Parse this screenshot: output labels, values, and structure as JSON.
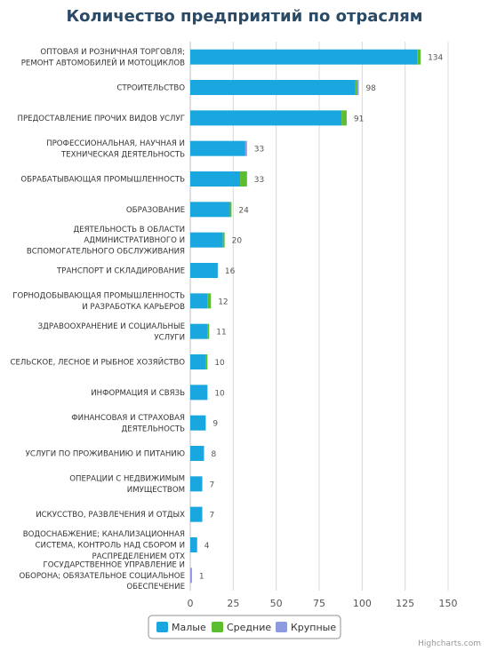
{
  "chart_data": {
    "type": "bar",
    "orientation": "horizontal",
    "stacked": true,
    "title": "Количество предприятий по отраслям",
    "categories": [
      [
        "ОПТОВАЯ И РОЗНИЧНАЯ ТОРГОВЛЯ;",
        "РЕМОНТ АВТОМОБИЛЕЙ И МОТОЦИКЛОВ"
      ],
      [
        "СТРОИТЕЛЬСТВО"
      ],
      [
        "ПРЕДОСТАВЛЕНИЕ ПРОЧИХ ВИДОВ УСЛУГ"
      ],
      [
        "ПРОФЕССИОНАЛЬНАЯ, НАУЧНАЯ И",
        "ТЕХНИЧЕСКАЯ ДЕЯТЕЛЬНОСТЬ"
      ],
      [
        "ОБРАБАТЫВАЮЩАЯ ПРОМЫШЛЕННОСТЬ"
      ],
      [
        "ОБРАЗОВАНИЕ"
      ],
      [
        "ДЕЯТЕЛЬНОСТЬ В ОБЛАСТИ",
        "АДМИНИСТРАТИВНОГО И",
        "ВСПОМОГАТЕЛЬНОГО ОБСЛУЖИВАНИЯ"
      ],
      [
        "ТРАНСПОРТ И СКЛАДИРОВАНИЕ"
      ],
      [
        "ГОРНОДОБЫВАЮЩАЯ ПРОМЫШЛЕННОСТЬ",
        "И РАЗРАБОТКА КАРЬЕРОВ"
      ],
      [
        "ЗДРАВООХРАНЕНИЕ И СОЦИАЛЬНЫЕ",
        "УСЛУГИ"
      ],
      [
        "СЕЛЬСКОЕ, ЛЕСНОЕ И РЫБНОЕ ХОЗЯЙСТВО"
      ],
      [
        "ИНФОРМАЦИЯ И СВЯЗЬ"
      ],
      [
        "ФИНАНСОВАЯ И СТРАХОВАЯ",
        "ДЕЯТЕЛЬНОСТЬ"
      ],
      [
        "УСЛУГИ ПО ПРОЖИВАНИЮ И ПИТАНИЮ"
      ],
      [
        "ОПЕРАЦИИ С НЕДВИЖИМЫМ",
        "ИМУЩЕСТВОМ"
      ],
      [
        "ИСКУССТВО, РАЗВЛЕЧЕНИЯ И ОТДЫХ"
      ],
      [
        "ВОДОСНАБЖЕНИЕ; КАНАЛИЗАЦИОННАЯ",
        "СИСТЕМА, КОНТРОЛЬ НАД СБОРОМ И",
        "РАСПРЕДЕЛЕНИЕМ ОТХ"
      ],
      [
        "ГОСУДАРСТВЕННОЕ УПРАВЛЕНИЕ И",
        "ОБОРОНА; ОБЯЗАТЕЛЬНОЕ СОЦИАЛЬНОЕ",
        "ОБЕСПЕЧЕНИЕ"
      ]
    ],
    "series": [
      {
        "name": "Малые",
        "color": "#1aa6de",
        "values": [
          132,
          96,
          88,
          32,
          29,
          23,
          19,
          16,
          10,
          10,
          9,
          10,
          9,
          8,
          7,
          7,
          4,
          0
        ]
      },
      {
        "name": "Средние",
        "color": "#5cbd2f",
        "values": [
          2,
          1,
          3,
          0,
          4,
          1,
          1,
          0,
          2,
          1,
          1,
          0,
          0,
          0,
          0,
          0,
          0,
          0
        ]
      },
      {
        "name": "Крупные",
        "color": "#8c9be0",
        "values": [
          0,
          1,
          0,
          1,
          0,
          0,
          0,
          0,
          0,
          0,
          0,
          0,
          0,
          0,
          0,
          0,
          0,
          1
        ]
      }
    ],
    "totals": [
      134,
      98,
      91,
      33,
      33,
      24,
      20,
      16,
      12,
      11,
      10,
      10,
      9,
      8,
      7,
      7,
      4,
      1
    ],
    "xlim": [
      0,
      150
    ],
    "xticks": [
      0,
      25,
      50,
      75,
      100,
      125,
      150
    ],
    "grid": "vertical",
    "legend": "bottom-center"
  },
  "credits": "Highcharts.com"
}
